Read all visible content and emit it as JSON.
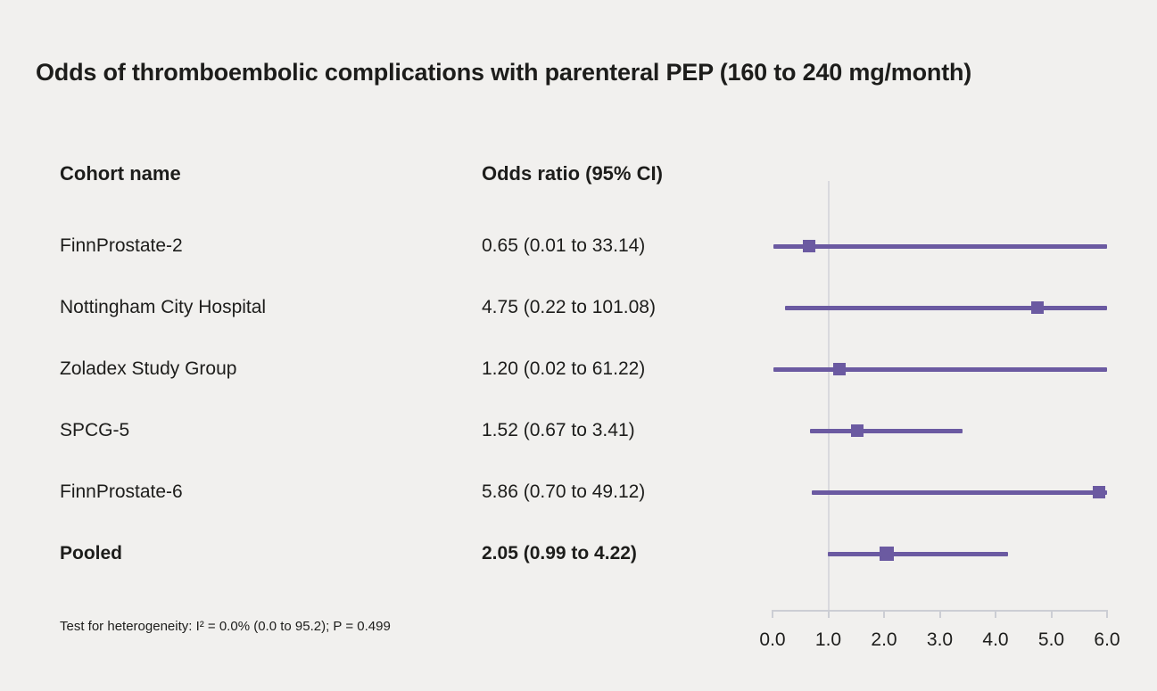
{
  "title": "Odds of thromboembolic complications with parenteral PEP (160 to 240 mg/month)",
  "table": {
    "col1_header": "Cohort name",
    "col2_header": "Odds ratio (95% CI)"
  },
  "footnote": "Test for heterogeneity: I² = 0.0% (0.0 to 95.2); P = 0.499",
  "chart_data": {
    "type": "forest",
    "title": "Odds of thromboembolic complications with parenteral PEP (160 to 240 mg/month)",
    "rows": [
      {
        "name": "FinnProstate-2",
        "label": "0.65 (0.01 to 33.14)",
        "est": 0.65,
        "lo": 0.01,
        "hi": 33.14,
        "bold": false
      },
      {
        "name": "Nottingham City Hospital",
        "label": "4.75 (0.22 to 101.08)",
        "est": 4.75,
        "lo": 0.22,
        "hi": 101.08,
        "bold": false
      },
      {
        "name": "Zoladex Study Group",
        "label": "1.20 (0.02 to 61.22)",
        "est": 1.2,
        "lo": 0.02,
        "hi": 61.22,
        "bold": false
      },
      {
        "name": "SPCG-5",
        "label": "1.52 (0.67 to 3.41)",
        "est": 1.52,
        "lo": 0.67,
        "hi": 3.41,
        "bold": false
      },
      {
        "name": "FinnProstate-6",
        "label": "5.86 (0.70 to 49.12)",
        "est": 5.86,
        "lo": 0.7,
        "hi": 49.12,
        "bold": false
      },
      {
        "name": "Pooled",
        "label": "2.05 (0.99 to 4.22)",
        "est": 2.05,
        "lo": 0.99,
        "hi": 4.22,
        "bold": true
      }
    ],
    "xaxis": {
      "min": 0.0,
      "max": 6.0,
      "ticks": [
        0.0,
        1.0,
        2.0,
        3.0,
        4.0,
        5.0,
        6.0
      ],
      "tick_labels": [
        "0.0",
        "1.0",
        "2.0",
        "3.0",
        "4.0",
        "5.0",
        "6.0"
      ],
      "ref_line": 1.0
    },
    "colors": {
      "marker": "#6b5aa1",
      "line": "#6b5aa1",
      "ref_line": "#d9d9de",
      "axis": "#ccced4"
    }
  }
}
